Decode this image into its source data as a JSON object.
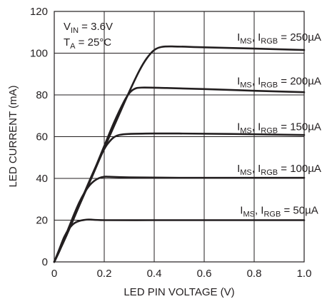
{
  "chart_data": {
    "type": "line",
    "xlabel": "LED PIN VOLTAGE (V)",
    "ylabel": "LED CURRENT (mA)",
    "xlim": [
      0,
      1.0
    ],
    "ylim": [
      0,
      120
    ],
    "x_ticks": [
      "0",
      "0.2",
      "0.4",
      "0.6",
      "0.8",
      "1.0"
    ],
    "y_ticks": [
      "0",
      "20",
      "40",
      "60",
      "80",
      "100",
      "120"
    ],
    "grid": true,
    "conditions": {
      "vin": {
        "main": "V",
        "sub": "IN",
        "rest": " = 3.6V"
      },
      "ta": {
        "main": "T",
        "sub": "A",
        "rest": " = 25°C"
      }
    },
    "series": [
      {
        "name": "IMS, IRGB = 50µA",
        "label": {
          "p1": "I",
          "s1": "MS",
          "p2": ", I",
          "s2": "RGB",
          "p3": " = 50µA"
        },
        "label_at": [
          0.9,
          23
        ],
        "points": [
          [
            0,
            0
          ],
          [
            0.02,
            6
          ],
          [
            0.04,
            12
          ],
          [
            0.06,
            16
          ],
          [
            0.08,
            18.5
          ],
          [
            0.1,
            19.6
          ],
          [
            0.12,
            20.1
          ],
          [
            0.14,
            20.3
          ],
          [
            0.2,
            20
          ],
          [
            0.4,
            20
          ],
          [
            0.6,
            20
          ],
          [
            0.8,
            20
          ],
          [
            1.0,
            20
          ]
        ]
      },
      {
        "name": "IMS, IRGB = 100µA",
        "label": {
          "p1": "I",
          "s1": "MS",
          "p2": ", I",
          "s2": "RGB",
          "p3": " = 100µA"
        },
        "label_at": [
          0.9,
          43
        ],
        "points": [
          [
            0,
            0
          ],
          [
            0.02,
            5
          ],
          [
            0.04,
            11
          ],
          [
            0.06,
            17
          ],
          [
            0.08,
            23
          ],
          [
            0.1,
            28.5
          ],
          [
            0.12,
            33
          ],
          [
            0.14,
            36.5
          ],
          [
            0.16,
            38.8
          ],
          [
            0.18,
            40.2
          ],
          [
            0.2,
            40.8
          ],
          [
            0.22,
            40.8
          ],
          [
            0.3,
            40.5
          ],
          [
            0.5,
            40.3
          ],
          [
            0.7,
            40.3
          ],
          [
            1.0,
            40.3
          ]
        ]
      },
      {
        "name": "IMS, IRGB = 150µA",
        "label": {
          "p1": "I",
          "s1": "MS",
          "p2": ", I",
          "s2": "RGB",
          "p3": " = 150µA"
        },
        "label_at": [
          0.9,
          63
        ],
        "points": [
          [
            0,
            0
          ],
          [
            0.04,
            10.5
          ],
          [
            0.08,
            21.5
          ],
          [
            0.12,
            33
          ],
          [
            0.16,
            44
          ],
          [
            0.2,
            54
          ],
          [
            0.22,
            57.5
          ],
          [
            0.24,
            59.8
          ],
          [
            0.26,
            60.8
          ],
          [
            0.3,
            61.3
          ],
          [
            0.4,
            61.5
          ],
          [
            0.5,
            61.5
          ],
          [
            0.7,
            61.3
          ],
          [
            1.0,
            60.8
          ]
        ]
      },
      {
        "name": "IMS, IRGB = 200µA",
        "label": {
          "p1": "I",
          "s1": "MS",
          "p2": ", I",
          "s2": "RGB",
          "p3": " = 200µA"
        },
        "label_at": [
          0.9,
          85
        ],
        "points": [
          [
            0,
            0
          ],
          [
            0.05,
            13
          ],
          [
            0.1,
            27
          ],
          [
            0.15,
            41
          ],
          [
            0.2,
            55.5
          ],
          [
            0.24,
            67
          ],
          [
            0.28,
            77
          ],
          [
            0.3,
            80.8
          ],
          [
            0.32,
            82.8
          ],
          [
            0.35,
            83.5
          ],
          [
            0.45,
            83.3
          ],
          [
            0.6,
            82.8
          ],
          [
            0.8,
            82
          ],
          [
            1.0,
            81.3
          ]
        ]
      },
      {
        "name": "IMS, IRGB = 250µA",
        "label": {
          "p1": "I",
          "s1": "MS",
          "p2": ", I",
          "s2": "RGB",
          "p3": " = 250µA"
        },
        "label_at": [
          0.9,
          106
        ],
        "points": [
          [
            0,
            0
          ],
          [
            0.05,
            13
          ],
          [
            0.1,
            27
          ],
          [
            0.15,
            40.5
          ],
          [
            0.2,
            54.5
          ],
          [
            0.25,
            68
          ],
          [
            0.3,
            81.5
          ],
          [
            0.34,
            91.5
          ],
          [
            0.37,
            97.5
          ],
          [
            0.4,
            101.5
          ],
          [
            0.43,
            103
          ],
          [
            0.48,
            103.2
          ],
          [
            0.6,
            102.8
          ],
          [
            0.8,
            102.2
          ],
          [
            1.0,
            101.5
          ]
        ]
      }
    ]
  }
}
